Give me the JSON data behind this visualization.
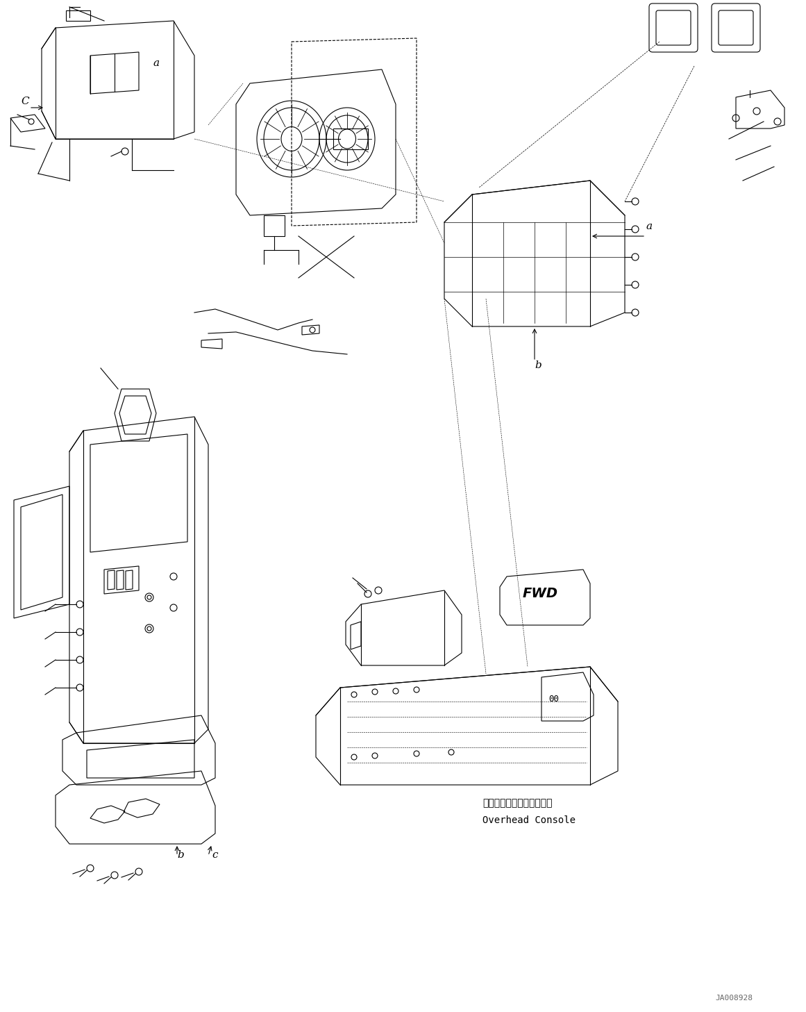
{
  "figure_width": 11.61,
  "figure_height": 14.57,
  "dpi": 100,
  "bg_color": "#ffffff",
  "line_color": "#000000",
  "label_a1": "a",
  "label_a2": "a",
  "label_b1": "b",
  "label_b2": "b",
  "label_c1": "C",
  "label_c2": "c",
  "label_fwd": "FWD",
  "overhead_console_jp": "オーバーヘッドコンソール",
  "overhead_console_en": "Overhead Console",
  "watermark": "JA008928",
  "font_size_label": 11,
  "font_size_note": 9,
  "font_size_watermark": 8
}
